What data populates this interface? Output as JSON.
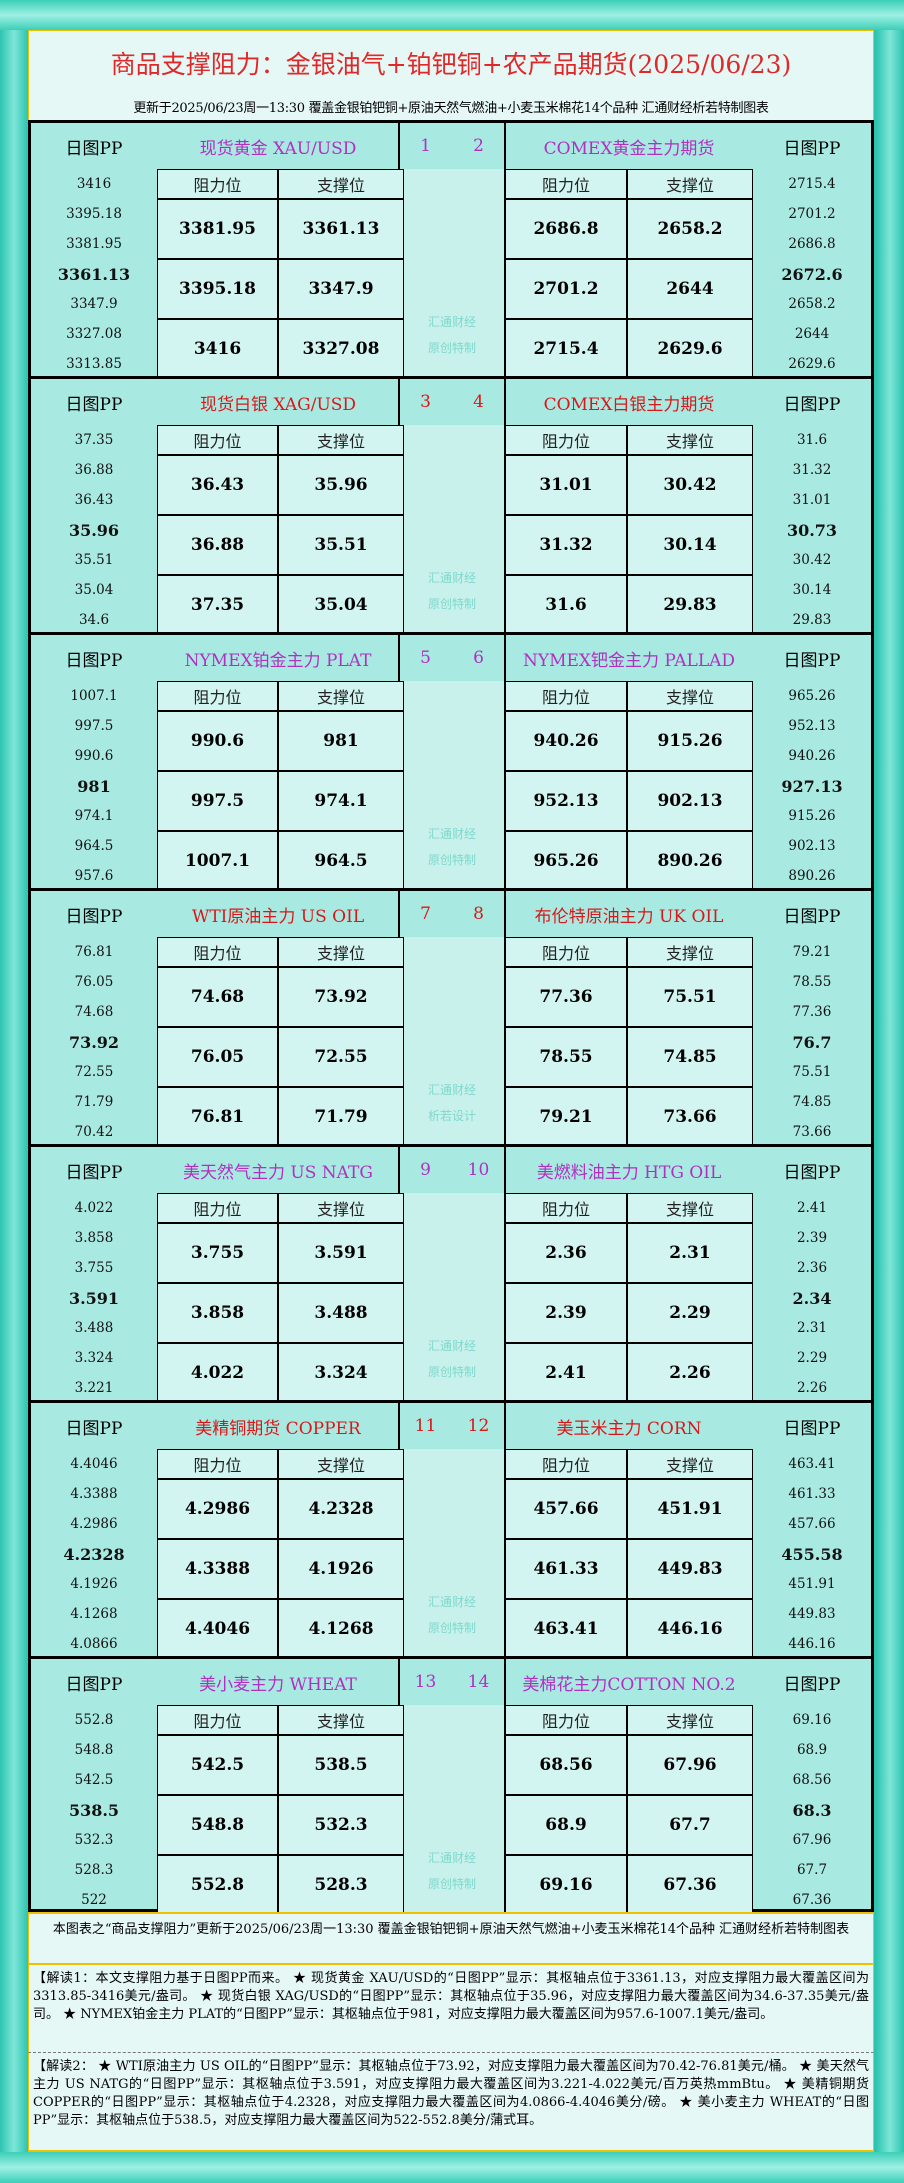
{
  "header": {
    "title": "商品支撑阻力：金银油气+铂钯铜+农产品期货(2025/06/23)",
    "subtitle": "更新于2025/06/23周一13:30  覆盖金银铂钯铜+原油天然气燃油+小麦玉米棉花14个品种  汇通财经析若特制图表"
  },
  "labels": {
    "pp": "日图PP",
    "resistance": "阻力位",
    "support": "支撑位"
  },
  "colors": {
    "purple": "#b030c0",
    "red": "#d81818"
  },
  "blocks": [
    {
      "color": "purple",
      "num_left": "1",
      "num_right": "2",
      "left_name": "现货黄金 XAU/USD",
      "right_name": "COMEX黄金主力期货",
      "wm1": "汇通财经",
      "wm2": "原创特制",
      "left_pp": [
        "3416",
        "3395.18",
        "3381.95",
        "3361.13",
        "3347.9",
        "3327.08",
        "3313.85"
      ],
      "left_rows": [
        [
          "3381.95",
          "3361.13"
        ],
        [
          "3395.18",
          "3347.9"
        ],
        [
          "3416",
          "3327.08"
        ]
      ],
      "right_rows": [
        [
          "2686.8",
          "2658.2"
        ],
        [
          "2701.2",
          "2644"
        ],
        [
          "2715.4",
          "2629.6"
        ]
      ],
      "right_pp": [
        "2715.4",
        "2701.2",
        "2686.8",
        "2672.6",
        "2658.2",
        "2644",
        "2629.6"
      ]
    },
    {
      "color": "red",
      "num_left": "3",
      "num_right": "4",
      "left_name": "现货白银 XAG/USD",
      "right_name": "COMEX白银主力期货",
      "wm1": "汇通财经",
      "wm2": "原创特制",
      "left_pp": [
        "37.35",
        "36.88",
        "36.43",
        "35.96",
        "35.51",
        "35.04",
        "34.6"
      ],
      "left_rows": [
        [
          "36.43",
          "35.96"
        ],
        [
          "36.88",
          "35.51"
        ],
        [
          "37.35",
          "35.04"
        ]
      ],
      "right_rows": [
        [
          "31.01",
          "30.42"
        ],
        [
          "31.32",
          "30.14"
        ],
        [
          "31.6",
          "29.83"
        ]
      ],
      "right_pp": [
        "31.6",
        "31.32",
        "31.01",
        "30.73",
        "30.42",
        "30.14",
        "29.83"
      ]
    },
    {
      "color": "purple",
      "num_left": "5",
      "num_right": "6",
      "left_name": "NYMEX铂金主力 PLAT",
      "right_name": "NYMEX钯金主力 PALLAD",
      "wm1": "汇通财经",
      "wm2": "原创特制",
      "left_pp": [
        "1007.1",
        "997.5",
        "990.6",
        "981",
        "974.1",
        "964.5",
        "957.6"
      ],
      "left_rows": [
        [
          "990.6",
          "981"
        ],
        [
          "997.5",
          "974.1"
        ],
        [
          "1007.1",
          "964.5"
        ]
      ],
      "right_rows": [
        [
          "940.26",
          "915.26"
        ],
        [
          "952.13",
          "902.13"
        ],
        [
          "965.26",
          "890.26"
        ]
      ],
      "right_pp": [
        "965.26",
        "952.13",
        "940.26",
        "927.13",
        "915.26",
        "902.13",
        "890.26"
      ]
    },
    {
      "color": "red",
      "num_left": "7",
      "num_right": "8",
      "left_name": "WTI原油主力 US OIL",
      "right_name": "布伦特原油主力 UK OIL",
      "wm1": "汇通财经",
      "wm2": "析若设计",
      "left_pp": [
        "76.81",
        "76.05",
        "74.68",
        "73.92",
        "72.55",
        "71.79",
        "70.42"
      ],
      "left_rows": [
        [
          "74.68",
          "73.92"
        ],
        [
          "76.05",
          "72.55"
        ],
        [
          "76.81",
          "71.79"
        ]
      ],
      "right_rows": [
        [
          "77.36",
          "75.51"
        ],
        [
          "78.55",
          "74.85"
        ],
        [
          "79.21",
          "73.66"
        ]
      ],
      "right_pp": [
        "79.21",
        "78.55",
        "77.36",
        "76.7",
        "75.51",
        "74.85",
        "73.66"
      ]
    },
    {
      "color": "purple",
      "num_left": "9",
      "num_right": "10",
      "left_name": "美天然气主力 US NATG",
      "right_name": "美燃料油主力 HTG OIL",
      "wm1": "汇通财经",
      "wm2": "原创特制",
      "left_pp": [
        "4.022",
        "3.858",
        "3.755",
        "3.591",
        "3.488",
        "3.324",
        "3.221"
      ],
      "left_rows": [
        [
          "3.755",
          "3.591"
        ],
        [
          "3.858",
          "3.488"
        ],
        [
          "4.022",
          "3.324"
        ]
      ],
      "right_rows": [
        [
          "2.36",
          "2.31"
        ],
        [
          "2.39",
          "2.29"
        ],
        [
          "2.41",
          "2.26"
        ]
      ],
      "right_pp": [
        "2.41",
        "2.39",
        "2.36",
        "2.34",
        "2.31",
        "2.29",
        "2.26"
      ]
    },
    {
      "color": "red",
      "num_left": "11",
      "num_right": "12",
      "left_name": "美精铜期货 COPPER",
      "right_name": "美玉米主力 CORN",
      "wm1": "汇通财经",
      "wm2": "原创特制",
      "left_pp": [
        "4.4046",
        "4.3388",
        "4.2986",
        "4.2328",
        "4.1926",
        "4.1268",
        "4.0866"
      ],
      "left_rows": [
        [
          "4.2986",
          "4.2328"
        ],
        [
          "4.3388",
          "4.1926"
        ],
        [
          "4.4046",
          "4.1268"
        ]
      ],
      "right_rows": [
        [
          "457.66",
          "451.91"
        ],
        [
          "461.33",
          "449.83"
        ],
        [
          "463.41",
          "446.16"
        ]
      ],
      "right_pp": [
        "463.41",
        "461.33",
        "457.66",
        "455.58",
        "451.91",
        "449.83",
        "446.16"
      ]
    },
    {
      "color": "purple",
      "num_left": "13",
      "num_right": "14",
      "left_name": "美小麦主力 WHEAT",
      "right_name": "美棉花主力COTTON NO.2",
      "wm1": "汇通财经",
      "wm2": "原创特制",
      "left_pp": [
        "552.8",
        "548.8",
        "542.5",
        "538.5",
        "532.3",
        "528.3",
        "522"
      ],
      "left_rows": [
        [
          "542.5",
          "538.5"
        ],
        [
          "548.8",
          "532.3"
        ],
        [
          "552.8",
          "528.3"
        ]
      ],
      "right_rows": [
        [
          "68.56",
          "67.96"
        ],
        [
          "68.9",
          "67.7"
        ],
        [
          "69.16",
          "67.36"
        ]
      ],
      "right_pp": [
        "69.16",
        "68.9",
        "68.56",
        "68.3",
        "67.96",
        "67.7",
        "67.36"
      ]
    }
  ],
  "footer": {
    "note": "本图表之“商品支撑阻力”更新于2025/06/23周一13:30 覆盖金银铂钯铜+原油天然气燃油+小麦玉米棉花14个品种 汇通财经析若特制图表",
    "jiedu1": "【解读1：本文支撑阻力基于日图PP而来。 ★ 现货黄金 XAU/USD的“日图PP”显示：其枢轴点位于3361.13，对应支撑阻力最大覆盖区间为3313.85-3416美元/盎司。 ★ 现货白银 XAG/USD的“日图PP”显示：其枢轴点位于35.96，对应支撑阻力最大覆盖区间为34.6-37.35美元/盎司。 ★ NYMEX铂金主力 PLAT的“日图PP”显示：其枢轴点位于981，对应支撑阻力最大覆盖区间为957.6-1007.1美元/盎司。",
    "jiedu2": "【解读2： ★ WTI原油主力 US OIL的“日图PP”显示：其枢轴点位于73.92，对应支撑阻力最大覆盖区间为70.42-76.81美元/桶。 ★ 美天然气主力 US NATG的“日图PP”显示：其枢轴点位于3.591，对应支撑阻力最大覆盖区间为3.221-4.022美元/百万英热mmBtu。 ★ 美精铜期货 COPPER的“日图PP”显示：其枢轴点位于4.2328，对应支撑阻力最大覆盖区间为4.0866-4.4046美分/磅。 ★ 美小麦主力 WHEAT的“日图PP”显示：其枢轴点位于538.5，对应支撑阻力最大覆盖区间为522-552.8美分/蒲式耳。"
  }
}
